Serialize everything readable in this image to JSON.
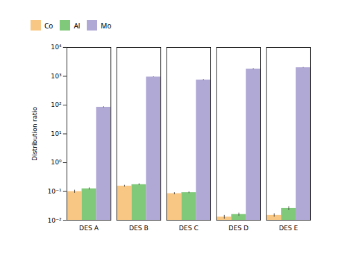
{
  "chart_data": {
    "type": "bar",
    "categories": [
      "DES A",
      "DES B",
      "DES C",
      "DES D",
      "DES E"
    ],
    "series": [
      {
        "name": "Co",
        "color": "#F9C784",
        "values": [
          0.1,
          0.155,
          0.085,
          0.013,
          0.015
        ],
        "errors": [
          0.012,
          0.01,
          0.007,
          0.002,
          0.002
        ]
      },
      {
        "name": "Al",
        "color": "#80C87A",
        "values": [
          0.125,
          0.175,
          0.092,
          0.016,
          0.026
        ],
        "errors": [
          0.01,
          0.012,
          0.006,
          0.002,
          0.004
        ]
      },
      {
        "name": "Mo",
        "color": "#B0A8D5",
        "values": [
          85,
          950,
          750,
          1800,
          2000
        ],
        "errors": [
          4,
          20,
          25,
          70,
          55
        ]
      }
    ],
    "ylabel": "Distribution ratio",
    "log": "y",
    "ylim": [
      0.01,
      10000
    ],
    "yticks": [
      {
        "value": 0.01,
        "label": "10⁻²"
      },
      {
        "value": 0.1,
        "label": "10⁻¹"
      },
      {
        "value": 1,
        "label": "10⁰"
      },
      {
        "value": 10,
        "label": "10¹"
      },
      {
        "value": 100,
        "label": "10²"
      },
      {
        "value": 1000,
        "label": "10³"
      },
      {
        "value": 10000,
        "label": "10⁴"
      }
    ],
    "grid": false,
    "legend": "upper left"
  }
}
